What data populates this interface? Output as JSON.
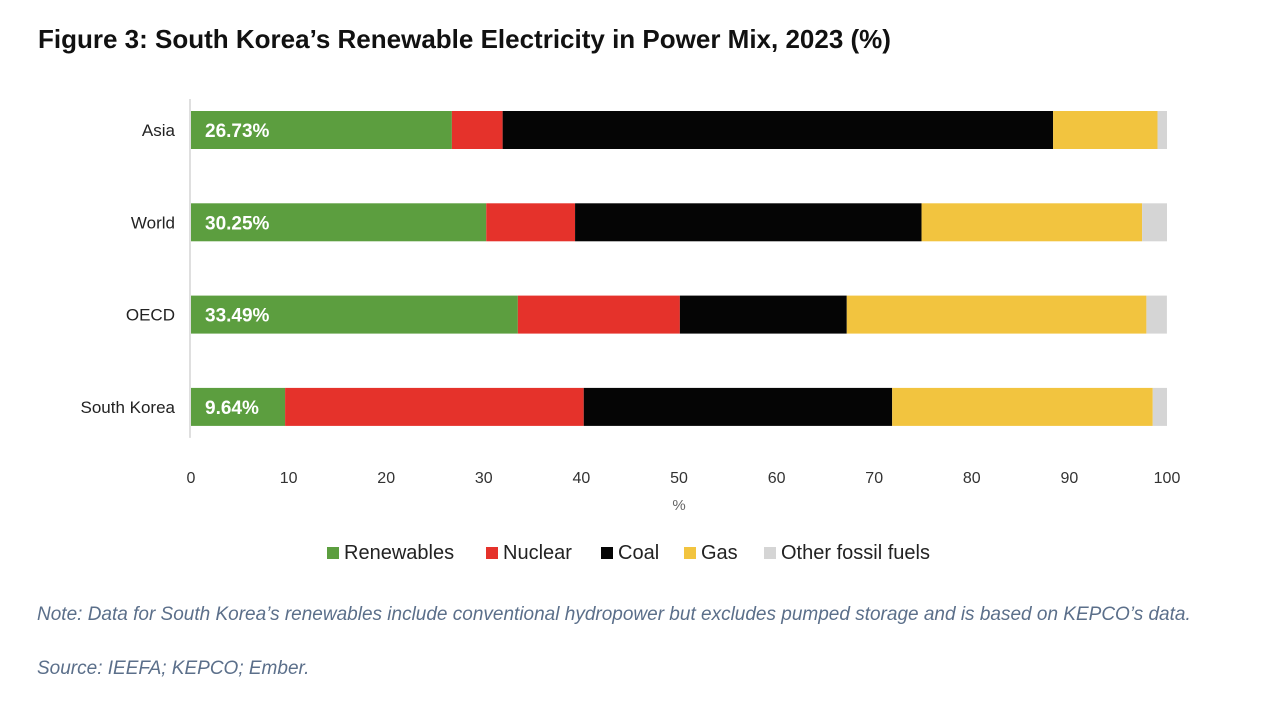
{
  "title": "Figure 3: South Korea’s Renewable Electricity in Power Mix, 2023 (%)",
  "colors": {
    "Renewables": "#5c9e3f",
    "Nuclear": "#e5322b",
    "Coal": "#050505",
    "Gas": "#f2c43f",
    "Other fossil fuels": "#d5d5d5"
  },
  "chart_data": {
    "type": "bar",
    "orientation": "horizontal",
    "stacked": true,
    "categories": [
      "Asia",
      "World",
      "OECD",
      "South Korea"
    ],
    "series": [
      {
        "name": "Renewables",
        "values": [
          26.73,
          30.25,
          33.49,
          9.64
        ]
      },
      {
        "name": "Nuclear",
        "values": [
          5.2,
          9.1,
          16.6,
          30.6
        ]
      },
      {
        "name": "Coal",
        "values": [
          56.4,
          35.5,
          17.1,
          31.6
        ]
      },
      {
        "name": "Gas",
        "values": [
          10.7,
          22.6,
          30.7,
          26.7
        ]
      },
      {
        "name": "Other fossil fuels",
        "values": [
          1.0,
          2.6,
          2.1,
          1.5
        ]
      }
    ],
    "data_labels": [
      "26.73%",
      "30.25%",
      "33.49%",
      "9.64%"
    ],
    "xticks": [
      0,
      10,
      20,
      30,
      40,
      50,
      60,
      70,
      80,
      90,
      100
    ],
    "xlabel": "%",
    "xlim": [
      0,
      100
    ],
    "legend": [
      "Renewables",
      "Nuclear",
      "Coal",
      "Gas",
      "Other fossil fuels"
    ],
    "legend_position": "bottom"
  },
  "note": "Note: Data for South Korea’s renewables include conventional hydropower but excludes pumped storage and is based on KEPCO’s data.",
  "source": "Source: IEEFA; KEPCO; Ember."
}
